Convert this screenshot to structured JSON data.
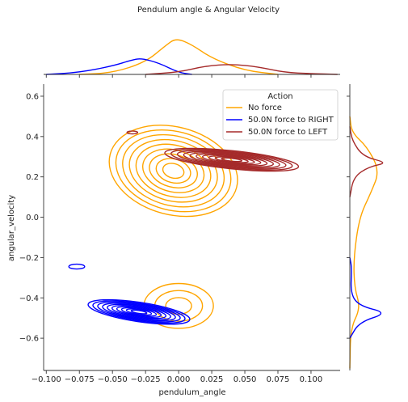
{
  "chart_data": {
    "type": "kde-jointplot",
    "title": "Pendulum angle & Angular Velocity",
    "xlabel": "pendulum_angle",
    "ylabel": "angular_velocity",
    "xlim": [
      -0.102,
      0.122
    ],
    "ylim": [
      -0.76,
      0.66
    ],
    "x_ticks": [
      -0.1,
      -0.075,
      -0.05,
      -0.025,
      0.0,
      0.025,
      0.05,
      0.075,
      0.1
    ],
    "x_tick_labels": [
      "−0.100",
      "−0.075",
      "−0.050",
      "−0.025",
      "0.000",
      "0.025",
      "0.050",
      "0.075",
      "0.100"
    ],
    "y_ticks": [
      -0.6,
      -0.4,
      -0.2,
      0.0,
      0.2,
      0.4,
      0.6
    ],
    "y_tick_labels": [
      "−0.6",
      "−0.4",
      "−0.2",
      "0.0",
      "0.2",
      "0.4",
      "0.6"
    ],
    "legend": {
      "title": "Action",
      "placement": "top-right",
      "entries": [
        "No force",
        "50.0N force to RIGHT",
        "50.0N force to LEFT"
      ]
    },
    "series": [
      {
        "name": "No force",
        "color": "#FFA500",
        "clusters": [
          {
            "cx": -0.004,
            "cy": 0.23,
            "sx": 0.024,
            "sy": 0.112,
            "rho": -0.2,
            "levels": 9
          },
          {
            "cx": 0.0,
            "cy": -0.44,
            "sx": 0.013,
            "sy": 0.055,
            "rho": 0.0,
            "levels": 3
          }
        ],
        "marginal_x": [
          [
            -0.075,
            0.0
          ],
          [
            -0.05,
            0.04
          ],
          [
            -0.025,
            0.32
          ],
          [
            -0.01,
            0.75
          ],
          [
            -0.002,
            0.95
          ],
          [
            0.01,
            0.78
          ],
          [
            0.025,
            0.42
          ],
          [
            0.05,
            0.1
          ],
          [
            0.075,
            0.0
          ]
        ],
        "marginal_y": [
          [
            -0.75,
            0.0
          ],
          [
            -0.55,
            0.02
          ],
          [
            -0.45,
            0.28
          ],
          [
            -0.35,
            0.12
          ],
          [
            -0.2,
            0.1
          ],
          [
            0.0,
            0.25
          ],
          [
            0.12,
            0.55
          ],
          [
            0.23,
            0.78
          ],
          [
            0.35,
            0.45
          ],
          [
            0.42,
            0.05
          ],
          [
            0.5,
            0.0
          ]
        ]
      },
      {
        "name": "50.0N force to RIGHT",
        "color": "#0000FF",
        "clusters": [
          {
            "cx": -0.03,
            "cy": -0.47,
            "sx": 0.019,
            "sy": 0.03,
            "rho": -0.6,
            "levels": 10
          },
          {
            "cx": -0.077,
            "cy": -0.245,
            "sx": 0.006,
            "sy": 0.012,
            "rho": 0.0,
            "levels": 1
          }
        ],
        "marginal_x": [
          [
            -0.1,
            0.0
          ],
          [
            -0.075,
            0.05
          ],
          [
            -0.05,
            0.22
          ],
          [
            -0.035,
            0.38
          ],
          [
            -0.028,
            0.42
          ],
          [
            -0.015,
            0.3
          ],
          [
            0.0,
            0.05
          ],
          [
            0.01,
            0.0
          ]
        ],
        "marginal_y": [
          [
            -0.6,
            0.0
          ],
          [
            -0.52,
            0.25
          ],
          [
            -0.475,
            1.0
          ],
          [
            -0.44,
            0.25
          ],
          [
            -0.38,
            0.02
          ],
          [
            -0.25,
            0.05
          ],
          [
            -0.2,
            0.0
          ]
        ]
      },
      {
        "name": "50.0N force to LEFT",
        "color": "#A52A2A",
        "clusters": [
          {
            "cx": 0.04,
            "cy": 0.285,
            "sx": 0.025,
            "sy": 0.028,
            "rho": -0.6,
            "levels": 10
          },
          {
            "cx": -0.035,
            "cy": 0.42,
            "sx": 0.004,
            "sy": 0.007,
            "rho": 0.0,
            "levels": 1
          }
        ],
        "marginal_x": [
          [
            -0.025,
            0.0
          ],
          [
            0.0,
            0.06
          ],
          [
            0.02,
            0.22
          ],
          [
            0.04,
            0.27
          ],
          [
            0.06,
            0.2
          ],
          [
            0.08,
            0.05
          ],
          [
            0.1,
            0.02
          ],
          [
            0.12,
            0.0
          ]
        ],
        "marginal_y": [
          [
            0.1,
            0.0
          ],
          [
            0.2,
            0.1
          ],
          [
            0.25,
            0.5
          ],
          [
            0.27,
            1.0
          ],
          [
            0.3,
            0.35
          ],
          [
            0.38,
            0.06
          ],
          [
            0.45,
            0.0
          ]
        ]
      }
    ],
    "grid": false
  }
}
